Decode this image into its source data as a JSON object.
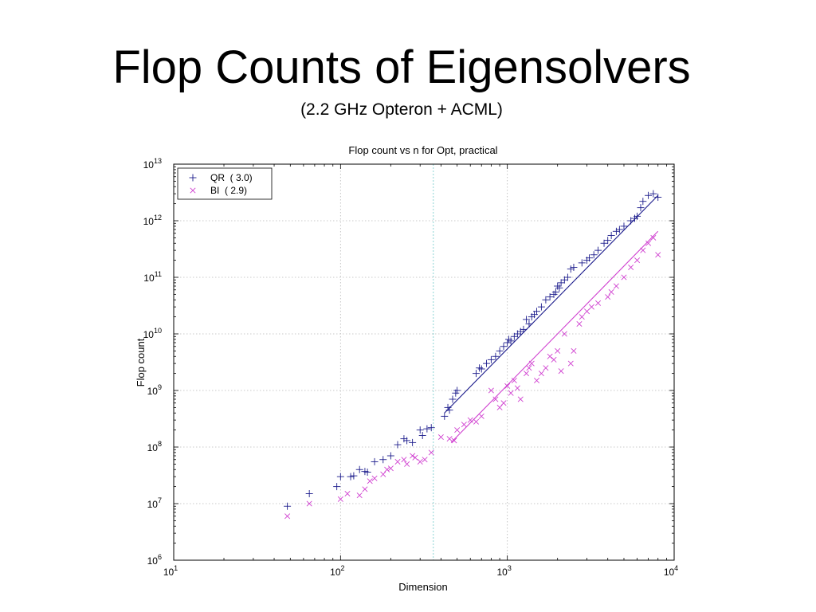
{
  "slide": {
    "title": "Flop Counts of Eigensolvers",
    "subtitle": "(2.2 GHz Opteron + ACML)"
  },
  "colors": {
    "qr": "#1c1c8c",
    "bi": "#d040d0",
    "grid": "#b8b8b8",
    "vline": "#7fcfcf"
  },
  "chart_data": {
    "type": "scatter",
    "title": "Flop count vs n for Opt, practical",
    "xlabel": "Dimension",
    "ylabel": "Flop count",
    "xscale": "log",
    "yscale": "log",
    "xlim": [
      10,
      10000
    ],
    "ylim": [
      1000000,
      10000000000000
    ],
    "grid": true,
    "legend_position": "top-left",
    "x_ticks": [
      {
        "base": "10",
        "exp": "1"
      },
      {
        "base": "10",
        "exp": "2"
      },
      {
        "base": "10",
        "exp": "3"
      },
      {
        "base": "10",
        "exp": "4"
      }
    ],
    "y_ticks": [
      {
        "base": "10",
        "exp": "6"
      },
      {
        "base": "10",
        "exp": "7"
      },
      {
        "base": "10",
        "exp": "8"
      },
      {
        "base": "10",
        "exp": "9"
      },
      {
        "base": "10",
        "exp": "10"
      },
      {
        "base": "10",
        "exp": "11"
      },
      {
        "base": "10",
        "exp": "12"
      },
      {
        "base": "10",
        "exp": "13"
      }
    ],
    "reference_line_x": 360,
    "series": [
      {
        "name": "QR  ( 3.0)",
        "marker": "plus",
        "fit": {
          "x": [
            420,
            8000
          ],
          "y": [
            400000000,
            2800000000000
          ]
        },
        "points": [
          [
            48,
            9000000
          ],
          [
            65,
            15000000
          ],
          [
            95,
            20000000
          ],
          [
            100,
            30000000
          ],
          [
            115,
            30000000
          ],
          [
            120,
            31000000
          ],
          [
            130,
            40000000
          ],
          [
            140,
            37000000
          ],
          [
            145,
            36000000
          ],
          [
            160,
            55000000
          ],
          [
            180,
            60000000
          ],
          [
            200,
            70000000
          ],
          [
            220,
            110000000
          ],
          [
            240,
            140000000
          ],
          [
            250,
            130000000
          ],
          [
            270,
            120000000
          ],
          [
            300,
            200000000
          ],
          [
            310,
            160000000
          ],
          [
            330,
            210000000
          ],
          [
            350,
            220000000
          ],
          [
            420,
            350000000
          ],
          [
            440,
            500000000
          ],
          [
            450,
            450000000
          ],
          [
            470,
            700000000
          ],
          [
            490,
            900000000
          ],
          [
            500,
            1000000000
          ],
          [
            650,
            2000000000
          ],
          [
            680,
            2500000000
          ],
          [
            700,
            2400000000
          ],
          [
            750,
            3000000000
          ],
          [
            800,
            3500000000
          ],
          [
            850,
            4000000000
          ],
          [
            900,
            5000000000
          ],
          [
            950,
            6000000000
          ],
          [
            1000,
            7000000000
          ],
          [
            1020,
            8000000000
          ],
          [
            1050,
            7500000000
          ],
          [
            1100,
            9000000000
          ],
          [
            1150,
            10000000000
          ],
          [
            1200,
            11000000000
          ],
          [
            1250,
            12000000000
          ],
          [
            1300,
            18000000000
          ],
          [
            1350,
            15000000000
          ],
          [
            1400,
            20000000000
          ],
          [
            1450,
            22000000000
          ],
          [
            1500,
            25000000000
          ],
          [
            1600,
            30000000000
          ],
          [
            1700,
            40000000000
          ],
          [
            1800,
            45000000000
          ],
          [
            1900,
            50000000000
          ],
          [
            1950,
            55000000000
          ],
          [
            2000,
            70000000000
          ],
          [
            2050,
            65000000000
          ],
          [
            2100,
            80000000000
          ],
          [
            2200,
            90000000000
          ],
          [
            2300,
            100000000000
          ],
          [
            2400,
            140000000000
          ],
          [
            2500,
            150000000000
          ],
          [
            2800,
            180000000000
          ],
          [
            3000,
            200000000000
          ],
          [
            3100,
            220000000000
          ],
          [
            3300,
            250000000000
          ],
          [
            3500,
            300000000000
          ],
          [
            3800,
            400000000000
          ],
          [
            4000,
            450000000000
          ],
          [
            4200,
            550000000000
          ],
          [
            4500,
            650000000000
          ],
          [
            4700,
            700000000000
          ],
          [
            5000,
            800000000000
          ],
          [
            5500,
            1000000000000
          ],
          [
            5800,
            1100000000000
          ],
          [
            6000,
            1200000000000
          ],
          [
            6300,
            1700000000000
          ],
          [
            6500,
            2200000000000
          ],
          [
            7000,
            2800000000000
          ],
          [
            7500,
            3000000000000
          ],
          [
            8000,
            2600000000000
          ]
        ]
      },
      {
        "name": "BI  ( 2.9)",
        "marker": "cross",
        "fit": {
          "x": [
            460,
            8000
          ],
          "y": [
            120000000,
            650000000000
          ]
        },
        "points": [
          [
            48,
            6000000
          ],
          [
            65,
            10000000
          ],
          [
            100,
            12000000
          ],
          [
            110,
            15000000
          ],
          [
            130,
            14000000
          ],
          [
            140,
            18000000
          ],
          [
            150,
            25000000
          ],
          [
            160,
            28000000
          ],
          [
            180,
            33000000
          ],
          [
            190,
            40000000
          ],
          [
            200,
            42000000
          ],
          [
            220,
            55000000
          ],
          [
            240,
            60000000
          ],
          [
            250,
            50000000
          ],
          [
            270,
            70000000
          ],
          [
            280,
            65000000
          ],
          [
            300,
            55000000
          ],
          [
            320,
            60000000
          ],
          [
            350,
            80000000
          ],
          [
            400,
            150000000
          ],
          [
            450,
            140000000
          ],
          [
            480,
            130000000
          ],
          [
            500,
            200000000
          ],
          [
            550,
            250000000
          ],
          [
            600,
            300000000
          ],
          [
            650,
            280000000
          ],
          [
            700,
            350000000
          ],
          [
            800,
            1000000000
          ],
          [
            850,
            700000000
          ],
          [
            900,
            500000000
          ],
          [
            950,
            600000000
          ],
          [
            1000,
            1200000000
          ],
          [
            1050,
            900000000
          ],
          [
            1100,
            1500000000
          ],
          [
            1150,
            1100000000
          ],
          [
            1200,
            700000000
          ],
          [
            1300,
            2000000000
          ],
          [
            1350,
            2500000000
          ],
          [
            1400,
            3000000000
          ],
          [
            1500,
            1500000000
          ],
          [
            1600,
            2000000000
          ],
          [
            1700,
            2500000000
          ],
          [
            1800,
            4000000000
          ],
          [
            1900,
            3500000000
          ],
          [
            2000,
            5000000000
          ],
          [
            2100,
            2200000000
          ],
          [
            2200,
            10000000000
          ],
          [
            2400,
            3000000000
          ],
          [
            2500,
            5000000000
          ],
          [
            2700,
            15000000000
          ],
          [
            2800,
            20000000000
          ],
          [
            3000,
            25000000000
          ],
          [
            3200,
            30000000000
          ],
          [
            3500,
            35000000000
          ],
          [
            4000,
            45000000000
          ],
          [
            4200,
            55000000000
          ],
          [
            4500,
            70000000000
          ],
          [
            5000,
            100000000000
          ],
          [
            5500,
            150000000000
          ],
          [
            6000,
            200000000000
          ],
          [
            6500,
            300000000000
          ],
          [
            7000,
            400000000000
          ],
          [
            7500,
            500000000000
          ],
          [
            8000,
            250000000000
          ]
        ]
      }
    ]
  }
}
